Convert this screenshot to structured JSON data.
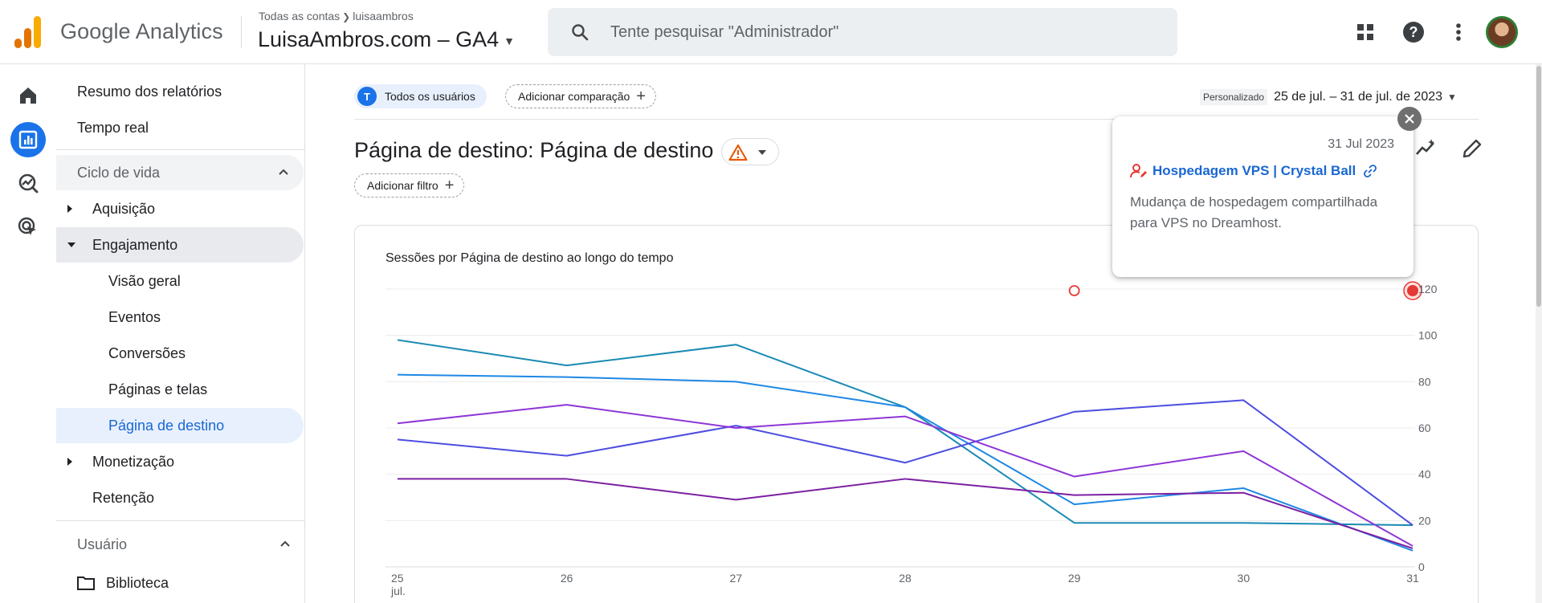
{
  "app": {
    "brand": "Google Analytics",
    "breadcrumb": {
      "root": "Todas as contas",
      "account": "luisaambros"
    },
    "property": "LuisaAmbros.com – GA4",
    "search_placeholder": "Tente pesquisar \"Administrador\"",
    "accent_color": "#1a73e8",
    "logo_colors": [
      "#e37400",
      "#f9ab00"
    ],
    "top_icons": [
      "apps-grid-icon",
      "help-icon",
      "more-vert-icon",
      "user-avatar"
    ]
  },
  "rail": {
    "items": [
      "home-icon",
      "reports-icon",
      "explore-icon",
      "advertising-icon"
    ],
    "active": "reports-icon"
  },
  "nav": {
    "summary": "Resumo dos relatórios",
    "realtime": "Tempo real",
    "lifecycle": "Ciclo de vida",
    "acquisition": "Aquisição",
    "engagement": "Engajamento",
    "engagement_items": [
      "Visão geral",
      "Eventos",
      "Conversões",
      "Páginas e telas",
      "Página de destino"
    ],
    "engagement_selected": "Página de destino",
    "monetization": "Monetização",
    "retention": "Retenção",
    "user": "Usuário",
    "library": "Biblioteca"
  },
  "main": {
    "segment_badge": "T",
    "segment_label": "Todos os usuários",
    "add_comparison": "Adicionar comparação",
    "date_tag": "Personalizado",
    "date_range": "25 de jul. – 31 de jul. de 2023",
    "title": "Página de destino: Página de destino",
    "add_filter": "Adicionar filtro"
  },
  "annotation": {
    "date": "31 Jul 2023",
    "title": "Hospedagem VPS | Crystal Ball",
    "description": "Mudança de hospedagem compartilhada para VPS no Dreamhost."
  },
  "chart_data": {
    "type": "line",
    "title": "Sessões por Página de destino ao longo do tempo",
    "categories": [
      "25 jul.",
      "26",
      "27",
      "28",
      "29",
      "30",
      "31"
    ],
    "ylim": [
      0,
      120
    ],
    "yticks": [
      0,
      20,
      40,
      60,
      80,
      100,
      120
    ],
    "grid": true,
    "annotation_markers": [
      "29",
      "31"
    ],
    "series": [
      {
        "color": "#1a8ab3",
        "values": [
          98,
          87,
          96,
          69,
          19,
          19,
          18
        ]
      },
      {
        "color": "#1e88e5",
        "values": [
          83,
          82,
          80,
          69,
          27,
          34,
          7
        ]
      },
      {
        "color": "#4d4ee0",
        "values": [
          55,
          48,
          61,
          45,
          67,
          72,
          18
        ]
      },
      {
        "color": "#8e36d6",
        "values": [
          62,
          70,
          60,
          65,
          39,
          50,
          9
        ]
      },
      {
        "color": "#7b1fa2",
        "values": [
          38,
          38,
          29,
          38,
          31,
          32,
          8
        ]
      }
    ]
  }
}
